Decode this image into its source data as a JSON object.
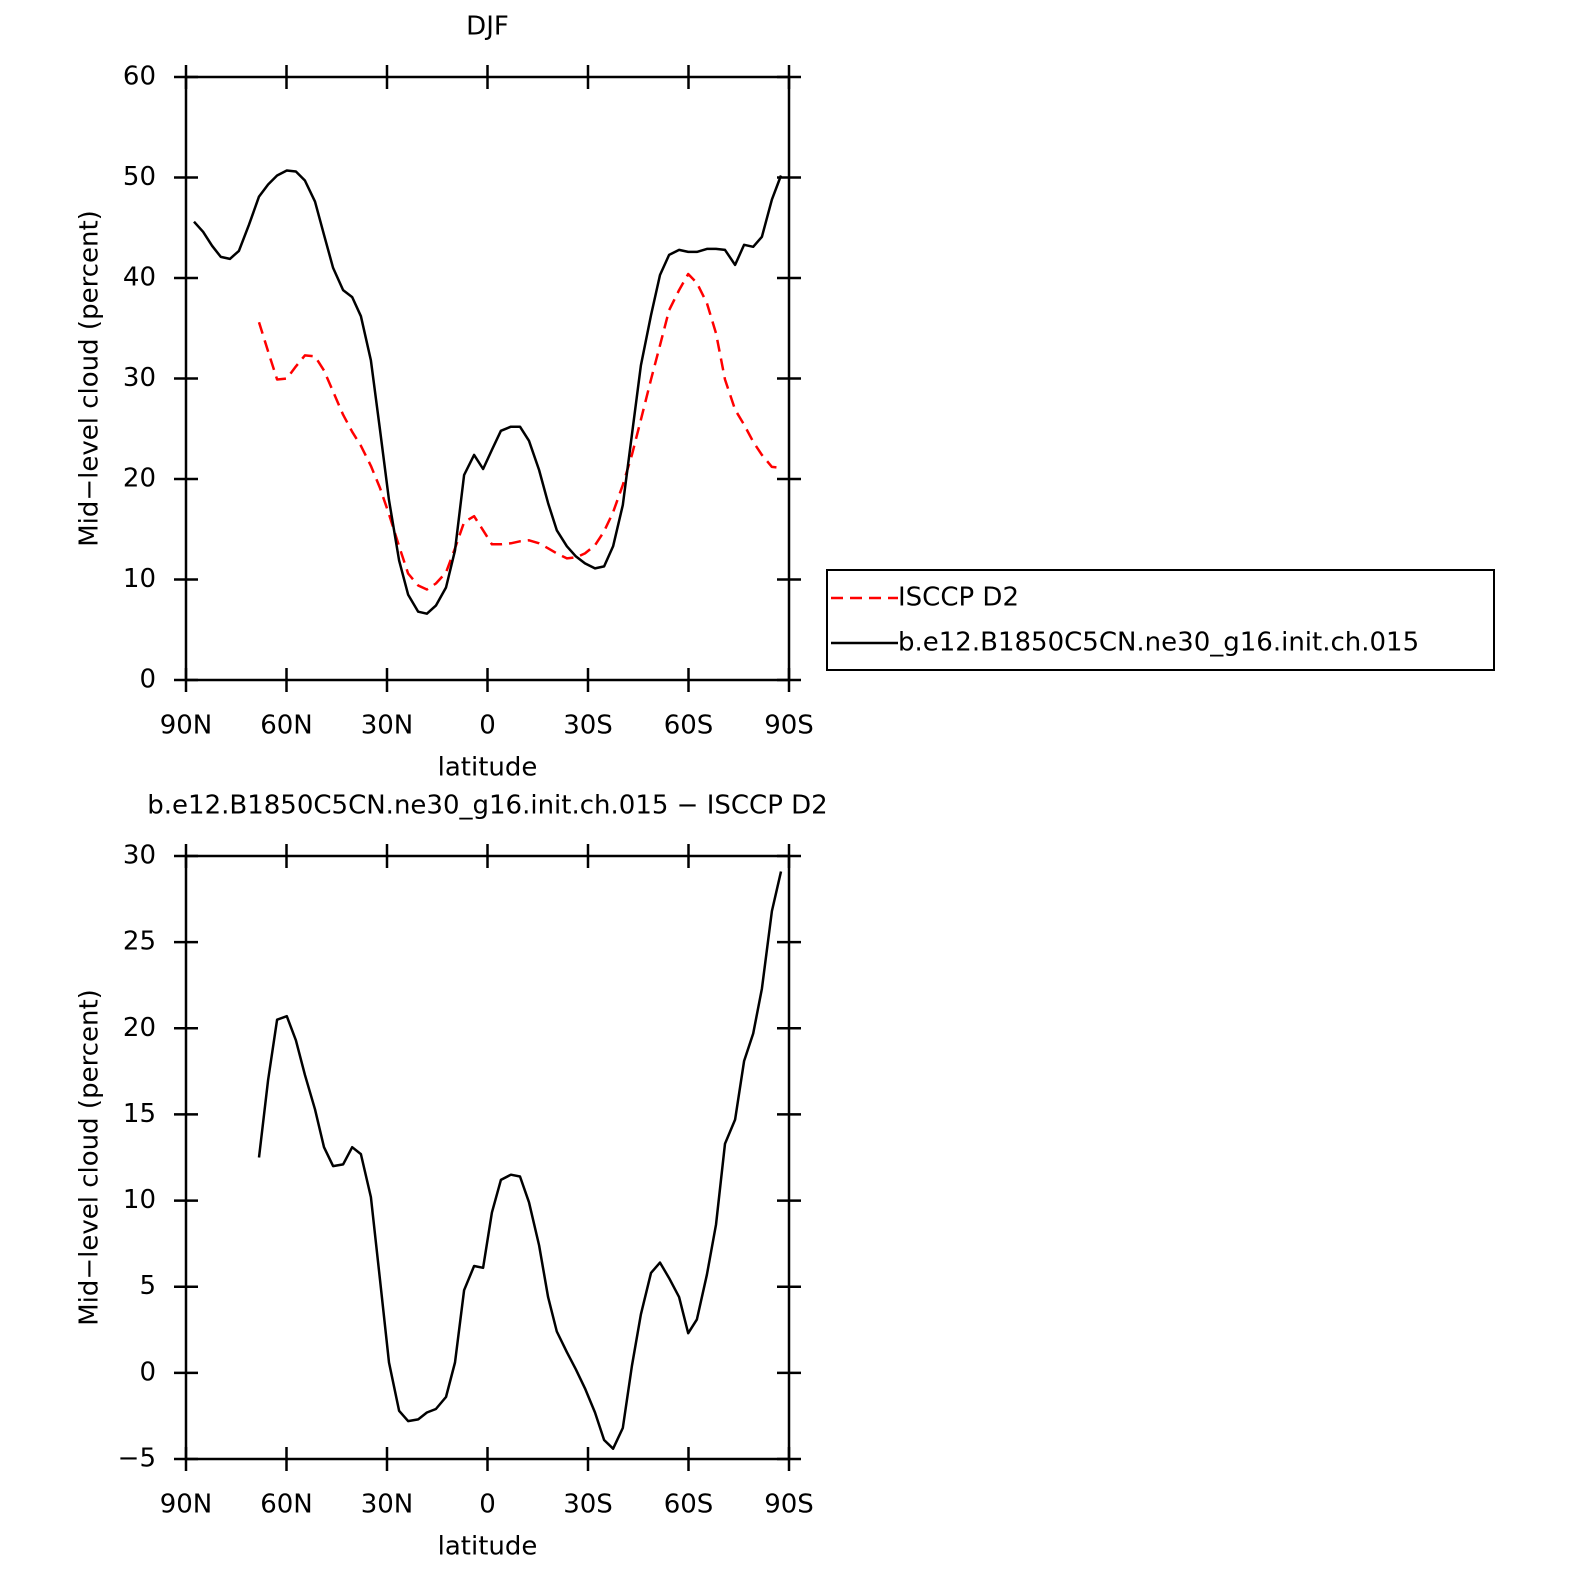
{
  "chart_data": [
    {
      "type": "line",
      "title": "DJF",
      "xlabel": "latitude",
      "ylabel": "Mid−level cloud (percent)",
      "x": [
        87.6,
        84.9,
        82.2,
        79.6,
        76.9,
        74.2,
        71.2,
        68.2,
        65.5,
        62.8,
        59.9,
        57.2,
        54.5,
        51.5,
        48.8,
        46.1,
        43.1,
        40.4,
        37.8,
        34.8,
        32.1,
        29.4,
        26.4,
        23.7,
        20.7,
        18.1,
        15.4,
        12.4,
        9.7,
        7.0,
        4.0,
        1.3,
        -1.3,
        -4.0,
        -7.0,
        -9.7,
        -12.4,
        -15.4,
        -18.1,
        -20.7,
        -23.7,
        -26.4,
        -29.1,
        -32.1,
        -34.8,
        -37.5,
        -40.4,
        -43.1,
        -45.8,
        -48.8,
        -51.5,
        -54.2,
        -57.2,
        -59.9,
        -62.5,
        -65.5,
        -68.2,
        -70.9,
        -73.9,
        -76.6,
        -79.3,
        -81.9,
        -84.9,
        -87.6
      ],
      "series": [
        {
          "name": "ISCCP D2",
          "color": "#ff0000",
          "linestyle": "dashed",
          "values": [
            null,
            null,
            null,
            null,
            null,
            null,
            null,
            35.6,
            32.7,
            29.9,
            30.0,
            31.2,
            32.3,
            32.2,
            30.8,
            28.7,
            26.4,
            24.7,
            23.3,
            21.3,
            19.1,
            16.5,
            13.3,
            10.6,
            9.4,
            9.0,
            9.6,
            10.7,
            13.1,
            15.7,
            16.3,
            14.9,
            13.5,
            13.5,
            13.6,
            13.8,
            13.9,
            13.6,
            13.1,
            12.6,
            12.1,
            12.2,
            12.6,
            13.4,
            14.8,
            16.7,
            19.4,
            22.4,
            25.9,
            29.9,
            33.3,
            36.8,
            38.8,
            40.4,
            39.5,
            37.5,
            34.5,
            29.9,
            26.9,
            25.4,
            23.7,
            22.4,
            21.2,
            21.1
          ]
        },
        {
          "name": "b.e12.B1850C5CN.ne30_g16.init.ch.015",
          "color": "#000000",
          "linestyle": "solid",
          "values": [
            45.6,
            44.6,
            43.2,
            42.1,
            41.9,
            42.7,
            45.3,
            48.1,
            49.3,
            50.2,
            50.7,
            50.6,
            49.7,
            47.6,
            44.3,
            41.0,
            38.8,
            38.1,
            36.2,
            31.8,
            24.9,
            17.9,
            11.9,
            8.5,
            6.8,
            6.6,
            7.4,
            9.2,
            12.9,
            20.4,
            22.4,
            21.0,
            22.9,
            24.8,
            25.2,
            25.2,
            23.8,
            20.9,
            17.6,
            14.9,
            13.3,
            12.3,
            11.6,
            11.1,
            11.3,
            13.3,
            17.4,
            24.4,
            31.3,
            36.3,
            40.3,
            42.3,
            42.8,
            42.6,
            42.6,
            42.9,
            42.9,
            42.8,
            41.3,
            43.3,
            43.1,
            44.1,
            47.8,
            50.2
          ]
        }
      ],
      "xlim": [
        90,
        -90
      ],
      "xticks": [
        {
          "value": 90,
          "label": "90N"
        },
        {
          "value": 60,
          "label": "60N"
        },
        {
          "value": 30,
          "label": "30N"
        },
        0,
        {
          "value": -30,
          "label": "30S"
        },
        {
          "value": -60,
          "label": "60S"
        },
        {
          "value": -90,
          "label": "90S"
        }
      ],
      "ylim": [
        0,
        60
      ],
      "yticks": [
        0,
        10,
        20,
        30,
        40,
        50,
        60
      ],
      "legend": "right"
    },
    {
      "type": "line",
      "title": "b.e12.B1850C5CN.ne30_g16.init.ch.015 − ISCCP D2",
      "xlabel": "latitude",
      "ylabel": "Mid−level cloud (percent)",
      "x": [
        87.6,
        84.9,
        82.2,
        79.6,
        76.9,
        74.2,
        71.2,
        68.2,
        65.5,
        62.8,
        59.9,
        57.2,
        54.5,
        51.5,
        48.8,
        46.1,
        43.1,
        40.4,
        37.8,
        34.8,
        32.1,
        29.4,
        26.4,
        23.7,
        20.7,
        18.1,
        15.4,
        12.4,
        9.7,
        7.0,
        4.0,
        1.3,
        -1.3,
        -4.0,
        -7.0,
        -9.7,
        -12.4,
        -15.4,
        -18.1,
        -20.7,
        -23.7,
        -26.4,
        -29.1,
        -32.1,
        -34.8,
        -37.5,
        -40.4,
        -43.1,
        -45.8,
        -48.8,
        -51.5,
        -54.2,
        -57.2,
        -59.9,
        -62.5,
        -65.5,
        -68.2,
        -70.9,
        -73.9,
        -76.6,
        -79.3,
        -81.9,
        -84.9,
        -87.6
      ],
      "values": [
        null,
        null,
        null,
        null,
        null,
        null,
        null,
        12.5,
        17.0,
        20.5,
        20.7,
        19.3,
        17.3,
        15.3,
        13.1,
        12.0,
        12.1,
        13.1,
        12.7,
        10.2,
        5.4,
        0.6,
        -2.2,
        -2.8,
        -2.7,
        -2.3,
        -2.1,
        -1.4,
        0.6,
        4.8,
        6.2,
        6.1,
        9.3,
        11.2,
        11.5,
        11.4,
        9.9,
        7.4,
        4.4,
        2.4,
        1.2,
        0.2,
        -0.9,
        -2.3,
        -3.9,
        -4.4,
        -3.2,
        0.4,
        3.4,
        5.8,
        6.4,
        5.5,
        4.4,
        2.3,
        3.1,
        5.7,
        8.6,
        13.3,
        14.7,
        18.1,
        19.7,
        22.3,
        26.8,
        29.1
      ],
      "color": "#000000",
      "linestyle": "solid",
      "xlim": [
        90,
        -90
      ],
      "xticks": [
        {
          "value": 90,
          "label": "90N"
        },
        {
          "value": 60,
          "label": "60N"
        },
        {
          "value": 30,
          "label": "30N"
        },
        0,
        {
          "value": -30,
          "label": "30S"
        },
        {
          "value": -60,
          "label": "60S"
        },
        {
          "value": -90,
          "label": "90S"
        }
      ],
      "ylim": [
        -5,
        30
      ],
      "yticks": [
        {
          "value": -5,
          "label": "−5"
        },
        0,
        5,
        10,
        15,
        20,
        25,
        30
      ]
    }
  ]
}
